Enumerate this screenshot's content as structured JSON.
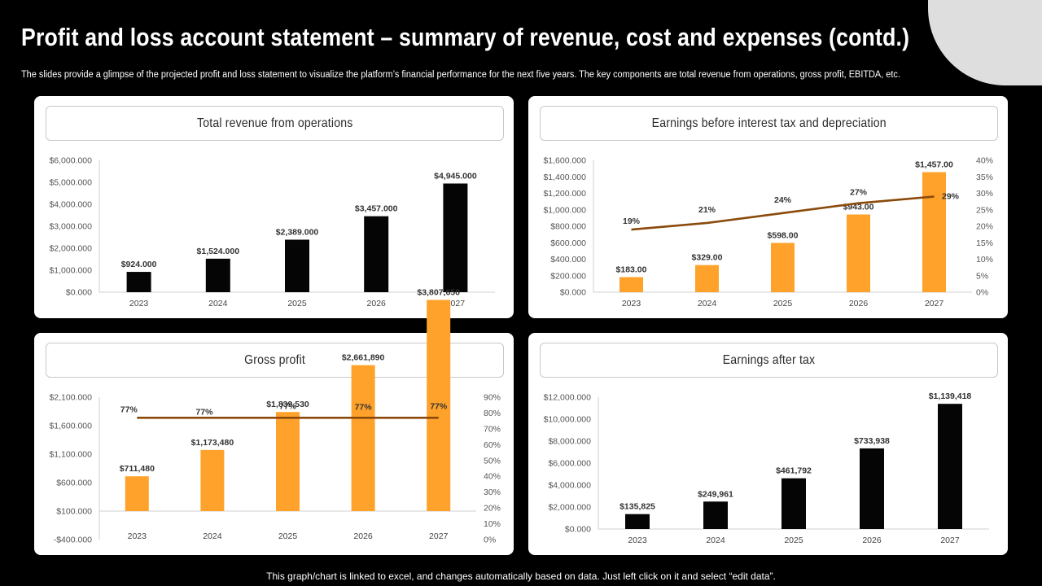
{
  "slide": {
    "title": "Profit and loss account statement – summary of revenue, cost and expenses (contd.)",
    "subtitle": "The slides provide a glimpse of the projected profit and loss statement to visualize the platform’s financial performance for the next five years. The key components are total revenue from operations, gross profit, EBITDA,  etc.",
    "footer": "This graph/chart is linked to excel,  and changes automatically based on data. Just left click on it and select “edit data”."
  },
  "colors": {
    "black_bar": "#050505",
    "orange_bar": "#FFA22B",
    "line": "#8B4A0B"
  },
  "chart_data": [
    {
      "type": "bar",
      "title": "Total revenue from operations",
      "categories": [
        "2023",
        "2024",
        "2025",
        "2026",
        "2027"
      ],
      "values": [
        924,
        1524,
        2389,
        3457,
        4945
      ],
      "value_labels": [
        "$924.000",
        "$1,524.000",
        "$2,389.000",
        "$3,457.000",
        "$4,945.000"
      ],
      "ylim": [
        0,
        6000
      ],
      "yticks": [
        0,
        1000,
        2000,
        3000,
        4000,
        5000,
        6000
      ],
      "ytick_labels": [
        "$0.000",
        "$1,000.000",
        "$2,000.000",
        "$3,000.000",
        "$4,000.000",
        "$5,000.000",
        "$6,000.000"
      ],
      "bar_color": "#050505"
    },
    {
      "type": "bar",
      "title": "Earnings before interest tax and depreciation",
      "categories": [
        "2023",
        "2024",
        "2025",
        "2026",
        "2027"
      ],
      "values": [
        183,
        329,
        598,
        943,
        1457
      ],
      "value_labels": [
        "$183.00",
        "$329.00",
        "$598.00",
        "$943.00",
        "$1,457.00"
      ],
      "ylim": [
        0,
        1600
      ],
      "yticks": [
        0,
        200,
        400,
        600,
        800,
        1000,
        1200,
        1400,
        1600
      ],
      "ytick_labels": [
        "$0.000",
        "$200.000",
        "$400.000",
        "$600.000",
        "$800.000",
        "$1,000.000",
        "$1,200.000",
        "$1,400.000",
        "$1,600.000"
      ],
      "bar_color": "#FFA22B",
      "line": {
        "values": [
          19,
          21,
          24,
          27,
          29
        ],
        "value_labels": [
          "19%",
          "21%",
          "24%",
          "27%",
          "29%"
        ],
        "ylim": [
          0,
          40
        ],
        "yticks": [
          0,
          5,
          10,
          15,
          20,
          25,
          30,
          35,
          40
        ],
        "ytick_labels": [
          "0%",
          "5%",
          "10%",
          "15%",
          "20%",
          "25%",
          "30%",
          "35%",
          "40%"
        ]
      }
    },
    {
      "type": "bar",
      "title": "Gross profit",
      "categories": [
        "2023",
        "2024",
        "2025",
        "2026",
        "2027"
      ],
      "values": [
        711480,
        1173480,
        1839530,
        2661890,
        3807650
      ],
      "value_labels": [
        "$711,480",
        "$1,173,480",
        "$1,839,530",
        "$2,661,890",
        "$3,807,650"
      ],
      "ylim": [
        -400,
        2100
      ],
      "yticks": [
        -400,
        100,
        600,
        1100,
        1600,
        2100
      ],
      "ytick_labels": [
        "-$400.000",
        "$100.000",
        "$600.000",
        "$1,100.000",
        "$1,600.000",
        "$2,100.000"
      ],
      "bar_color": "#FFA22B",
      "line": {
        "values": [
          77,
          77,
          77,
          77,
          77
        ],
        "value_labels": [
          "77%",
          "77%",
          "77%",
          "77%",
          "77%"
        ],
        "ylim": [
          0,
          90
        ],
        "yticks": [
          0,
          10,
          20,
          30,
          40,
          50,
          60,
          70,
          80,
          90
        ],
        "ytick_labels": [
          "0%",
          "10%",
          "20%",
          "30%",
          "40%",
          "50%",
          "60%",
          "70%",
          "80%",
          "90%"
        ]
      }
    },
    {
      "type": "bar",
      "title": "Earnings after tax",
      "categories": [
        "2023",
        "2024",
        "2025",
        "2026",
        "2027"
      ],
      "values": [
        135825,
        249961,
        461792,
        733938,
        1139418
      ],
      "value_labels": [
        "$135,825",
        "$249,961",
        "$461,792",
        "$733,938",
        "$1,139,418"
      ],
      "ylim": [
        0,
        12000
      ],
      "yticks": [
        0,
        2000,
        4000,
        6000,
        8000,
        10000,
        12000
      ],
      "ytick_labels": [
        "$0.000",
        "$2,000.000",
        "$4,000.000",
        "$6,000.000",
        "$8,000.000",
        "$10,000.000",
        "$12,000.000"
      ],
      "bar_color": "#050505"
    }
  ]
}
